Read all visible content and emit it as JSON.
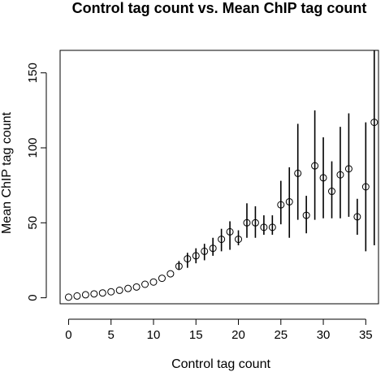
{
  "chart_data": {
    "type": "scatter",
    "title": "Control tag count vs. Mean ChIP tag count",
    "xlabel": "Control tag count",
    "ylabel": "Mean ChIP tag count",
    "xlim": [
      -1,
      36.5
    ],
    "ylim": [
      -4,
      165
    ],
    "xticks": [
      0,
      5,
      10,
      15,
      20,
      25,
      30,
      35
    ],
    "yticks": [
      0,
      50,
      100,
      150
    ],
    "grid": false,
    "legend": "none",
    "points": [
      {
        "x": 0,
        "y": 0.4,
        "lo": 0.4,
        "hi": 0.4
      },
      {
        "x": 1,
        "y": 1.2,
        "lo": 1.2,
        "hi": 1.2
      },
      {
        "x": 2,
        "y": 2.0,
        "lo": 2.0,
        "hi": 2.0
      },
      {
        "x": 3,
        "y": 2.6,
        "lo": 2.6,
        "hi": 2.6
      },
      {
        "x": 4,
        "y": 3.2,
        "lo": 3.2,
        "hi": 3.2
      },
      {
        "x": 5,
        "y": 4.0,
        "lo": 4.0,
        "hi": 4.0
      },
      {
        "x": 6,
        "y": 5.0,
        "lo": 5.0,
        "hi": 5.0
      },
      {
        "x": 7,
        "y": 6.2,
        "lo": 6.2,
        "hi": 6.2
      },
      {
        "x": 8,
        "y": 7.2,
        "lo": 7.2,
        "hi": 7.2
      },
      {
        "x": 9,
        "y": 9.0,
        "lo": 9.0,
        "hi": 9.0
      },
      {
        "x": 10,
        "y": 10.5,
        "lo": 10.5,
        "hi": 10.5
      },
      {
        "x": 11,
        "y": 13.0,
        "lo": 13.0,
        "hi": 13.0
      },
      {
        "x": 12,
        "y": 16.0,
        "lo": 16.0,
        "hi": 16.0
      },
      {
        "x": 13,
        "y": 21.0,
        "lo": 18.5,
        "hi": 24.5
      },
      {
        "x": 14,
        "y": 26.0,
        "lo": 20.0,
        "hi": 30.0
      },
      {
        "x": 15,
        "y": 28.0,
        "lo": 23.0,
        "hi": 33.0
      },
      {
        "x": 16,
        "y": 31.0,
        "lo": 25.0,
        "hi": 36.0
      },
      {
        "x": 17,
        "y": 33.0,
        "lo": 28.0,
        "hi": 40.0
      },
      {
        "x": 18,
        "y": 39.0,
        "lo": 31.0,
        "hi": 46.0
      },
      {
        "x": 19,
        "y": 44.0,
        "lo": 32.0,
        "hi": 51.0
      },
      {
        "x": 20,
        "y": 39.0,
        "lo": 35.0,
        "hi": 45.0
      },
      {
        "x": 21,
        "y": 50.0,
        "lo": 40.0,
        "hi": 63.0
      },
      {
        "x": 22,
        "y": 50.0,
        "lo": 40.0,
        "hi": 61.0
      },
      {
        "x": 23,
        "y": 47.0,
        "lo": 42.0,
        "hi": 55.0
      },
      {
        "x": 24,
        "y": 47.0,
        "lo": 42.0,
        "hi": 55.0
      },
      {
        "x": 25,
        "y": 62.0,
        "lo": 49.0,
        "hi": 78.0
      },
      {
        "x": 26,
        "y": 64.0,
        "lo": 40.0,
        "hi": 87.0
      },
      {
        "x": 27,
        "y": 83.0,
        "lo": 52.0,
        "hi": 116.0
      },
      {
        "x": 28,
        "y": 55.0,
        "lo": 43.0,
        "hi": 68.0
      },
      {
        "x": 29,
        "y": 88.0,
        "lo": 52.0,
        "hi": 125.0
      },
      {
        "x": 30,
        "y": 80.0,
        "lo": 53.0,
        "hi": 107.0
      },
      {
        "x": 31,
        "y": 71.0,
        "lo": 53.0,
        "hi": 91.0
      },
      {
        "x": 32,
        "y": 82.0,
        "lo": 53.0,
        "hi": 114.0
      },
      {
        "x": 33,
        "y": 86.0,
        "lo": 54.0,
        "hi": 123.0
      },
      {
        "x": 34,
        "y": 54.0,
        "lo": 42.0,
        "hi": 66.0
      },
      {
        "x": 35,
        "y": 74.0,
        "lo": 31.0,
        "hi": 117.0
      },
      {
        "x": 36,
        "y": 117.0,
        "lo": 35.0,
        "hi": 165.0
      }
    ]
  }
}
